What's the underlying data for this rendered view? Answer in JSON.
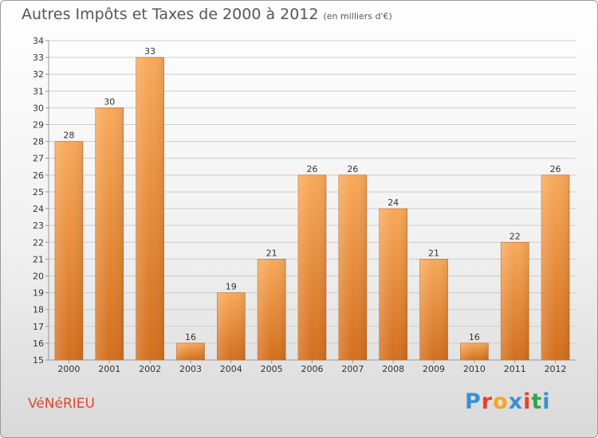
{
  "header": {
    "title": "Autres Impôts et Taxes de 2000 à 2012",
    "subtitle": "(en milliers d'€)"
  },
  "footer": {
    "town": "VéNéRIEU",
    "logo_letters": [
      "P",
      "r",
      "o",
      "x",
      "i",
      "t",
      "i"
    ],
    "logo_colors": [
      "#3a8fd6",
      "#e8402a",
      "#f5a623",
      "#3a8fd6",
      "#e8402a",
      "#2ba84a",
      "#3a8fd6"
    ]
  },
  "colors": {
    "bar_light": "#f8a95a",
    "bar_dark": "#d36f1d",
    "grid": "#cccccc",
    "axis": "#999999"
  },
  "chart_data": {
    "type": "bar",
    "title": "Autres Impôts et Taxes de 2000 à 2012",
    "subtitle": "(en milliers d'€)",
    "categories": [
      "2000",
      "2001",
      "2002",
      "2003",
      "2004",
      "2005",
      "2006",
      "2007",
      "2008",
      "2009",
      "2010",
      "2011",
      "2012"
    ],
    "values": [
      28,
      30,
      33,
      16,
      19,
      21,
      26,
      26,
      24,
      21,
      16,
      22,
      26
    ],
    "ylim": [
      15,
      34
    ],
    "yticks": [
      15,
      16,
      17,
      18,
      19,
      20,
      21,
      22,
      23,
      24,
      25,
      26,
      27,
      28,
      29,
      30,
      31,
      32,
      33,
      34
    ],
    "grid": true,
    "xlabel": "",
    "ylabel": ""
  }
}
